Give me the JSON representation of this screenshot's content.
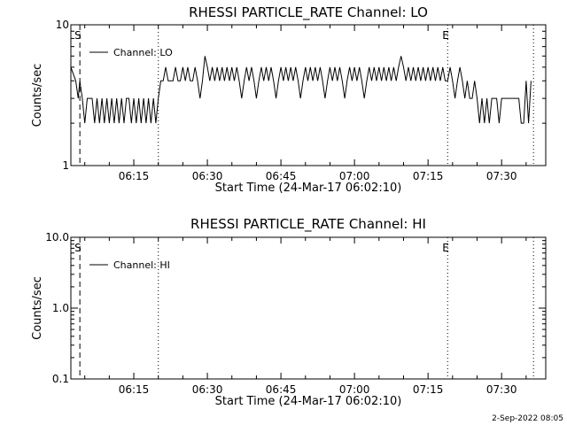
{
  "footer_text": "2-Sep-2022 08:05",
  "chart_data": [
    {
      "type": "line",
      "title": "RHESSI PARTICLE_RATE Channel: LO",
      "xlabel": "Start Time (24-Mar-17 06:02:10)",
      "ylabel": "Counts/sec",
      "y_scale": "log",
      "xlim": [
        "06:02:10",
        "07:39:00"
      ],
      "ylim": [
        1,
        10
      ],
      "x_ticks": [
        "06:15",
        "06:30",
        "06:45",
        "07:00",
        "07:15",
        "07:30"
      ],
      "y_ticks": [
        {
          "value": 1,
          "label": "1"
        },
        {
          "value": 10,
          "label": "10"
        }
      ],
      "legend": {
        "placement": "top-left",
        "entries": [
          "Channel: LO"
        ]
      },
      "markers": [
        {
          "time": "06:04:00",
          "label": "S",
          "style": "dashed"
        },
        {
          "time": "06:20:00",
          "label": "",
          "style": "dotted"
        },
        {
          "time": "07:19:00",
          "label": "E",
          "style": "dotted"
        },
        {
          "time": "07:36:30",
          "label": "",
          "style": "dotted"
        }
      ],
      "series": [
        {
          "name": "Channel: LO",
          "color": "#000000",
          "points": [
            [
              "06:02:10",
              5
            ],
            [
              "06:03:10",
              4
            ],
            [
              "06:03:40",
              3
            ],
            [
              "06:04:00",
              4
            ],
            [
              "06:04:30",
              3
            ],
            [
              "06:05:00",
              2
            ],
            [
              "06:05:30",
              3
            ],
            [
              "06:06:00",
              3
            ],
            [
              "06:06:30",
              3
            ],
            [
              "06:07:00",
              2
            ],
            [
              "06:07:30",
              3
            ],
            [
              "06:08:00",
              2
            ],
            [
              "06:08:30",
              3
            ],
            [
              "06:09:00",
              2
            ],
            [
              "06:09:30",
              3
            ],
            [
              "06:10:00",
              2
            ],
            [
              "06:10:30",
              3
            ],
            [
              "06:11:00",
              2
            ],
            [
              "06:11:30",
              3
            ],
            [
              "06:12:00",
              2
            ],
            [
              "06:12:30",
              3
            ],
            [
              "06:13:00",
              2
            ],
            [
              "06:13:30",
              3
            ],
            [
              "06:14:00",
              3
            ],
            [
              "06:14:30",
              2
            ],
            [
              "06:15:00",
              3
            ],
            [
              "06:15:30",
              2
            ],
            [
              "06:16:00",
              3
            ],
            [
              "06:16:30",
              2
            ],
            [
              "06:17:00",
              3
            ],
            [
              "06:17:30",
              2
            ],
            [
              "06:18:00",
              3
            ],
            [
              "06:18:30",
              2
            ],
            [
              "06:19:00",
              3
            ],
            [
              "06:19:30",
              2
            ],
            [
              "06:20:00",
              3
            ],
            [
              "06:20:30",
              4
            ],
            [
              "06:21:00",
              4
            ],
            [
              "06:21:30",
              5
            ],
            [
              "06:22:00",
              4
            ],
            [
              "06:22:30",
              4
            ],
            [
              "06:23:00",
              4
            ],
            [
              "06:23:30",
              5
            ],
            [
              "06:24:00",
              4
            ],
            [
              "06:24:30",
              4
            ],
            [
              "06:25:00",
              5
            ],
            [
              "06:25:30",
              4
            ],
            [
              "06:26:00",
              5
            ],
            [
              "06:26:30",
              4
            ],
            [
              "06:27:00",
              4
            ],
            [
              "06:27:30",
              5
            ],
            [
              "06:28:00",
              4
            ],
            [
              "06:28:30",
              3
            ],
            [
              "06:29:00",
              4
            ],
            [
              "06:29:30",
              6
            ],
            [
              "06:30:00",
              5
            ],
            [
              "06:30:30",
              4
            ],
            [
              "06:31:00",
              5
            ],
            [
              "06:31:30",
              4
            ],
            [
              "06:32:00",
              5
            ],
            [
              "06:32:30",
              4
            ],
            [
              "06:33:00",
              5
            ],
            [
              "06:33:30",
              4
            ],
            [
              "06:34:00",
              5
            ],
            [
              "06:34:30",
              4
            ],
            [
              "06:35:00",
              5
            ],
            [
              "06:35:30",
              4
            ],
            [
              "06:36:00",
              5
            ],
            [
              "06:36:30",
              4
            ],
            [
              "06:37:00",
              3
            ],
            [
              "06:37:30",
              4
            ],
            [
              "06:38:00",
              5
            ],
            [
              "06:38:30",
              4
            ],
            [
              "06:39:00",
              5
            ],
            [
              "06:39:30",
              4
            ],
            [
              "06:40:00",
              3
            ],
            [
              "06:40:30",
              4
            ],
            [
              "06:41:00",
              5
            ],
            [
              "06:41:30",
              4
            ],
            [
              "06:42:00",
              5
            ],
            [
              "06:42:30",
              4
            ],
            [
              "06:43:00",
              5
            ],
            [
              "06:43:30",
              4
            ],
            [
              "06:44:00",
              3
            ],
            [
              "06:44:30",
              4
            ],
            [
              "06:45:00",
              5
            ],
            [
              "06:45:30",
              4
            ],
            [
              "06:46:00",
              5
            ],
            [
              "06:46:30",
              4
            ],
            [
              "06:47:00",
              5
            ],
            [
              "06:47:30",
              4
            ],
            [
              "06:48:00",
              5
            ],
            [
              "06:48:30",
              4
            ],
            [
              "06:49:00",
              3
            ],
            [
              "06:49:30",
              4
            ],
            [
              "06:50:00",
              5
            ],
            [
              "06:50:30",
              4
            ],
            [
              "06:51:00",
              5
            ],
            [
              "06:51:30",
              4
            ],
            [
              "06:52:00",
              5
            ],
            [
              "06:52:30",
              4
            ],
            [
              "06:53:00",
              5
            ],
            [
              "06:53:30",
              4
            ],
            [
              "06:54:00",
              3
            ],
            [
              "06:54:30",
              4
            ],
            [
              "06:55:00",
              5
            ],
            [
              "06:55:30",
              4
            ],
            [
              "06:56:00",
              5
            ],
            [
              "06:56:30",
              4
            ],
            [
              "06:57:00",
              5
            ],
            [
              "06:57:30",
              4
            ],
            [
              "06:58:00",
              3
            ],
            [
              "06:58:30",
              4
            ],
            [
              "06:59:00",
              5
            ],
            [
              "06:59:30",
              4
            ],
            [
              "07:00:00",
              5
            ],
            [
              "07:00:30",
              4
            ],
            [
              "07:01:00",
              5
            ],
            [
              "07:01:30",
              4
            ],
            [
              "07:02:00",
              3
            ],
            [
              "07:02:30",
              4
            ],
            [
              "07:03:00",
              5
            ],
            [
              "07:03:30",
              4
            ],
            [
              "07:04:00",
              5
            ],
            [
              "07:04:30",
              4
            ],
            [
              "07:05:00",
              5
            ],
            [
              "07:05:30",
              4
            ],
            [
              "07:06:00",
              5
            ],
            [
              "07:06:30",
              4
            ],
            [
              "07:07:00",
              5
            ],
            [
              "07:07:30",
              4
            ],
            [
              "07:08:00",
              5
            ],
            [
              "07:08:30",
              4
            ],
            [
              "07:09:00",
              5
            ],
            [
              "07:09:30",
              6
            ],
            [
              "07:10:00",
              5
            ],
            [
              "07:10:30",
              4
            ],
            [
              "07:11:00",
              5
            ],
            [
              "07:11:30",
              4
            ],
            [
              "07:12:00",
              5
            ],
            [
              "07:12:30",
              4
            ],
            [
              "07:13:00",
              5
            ],
            [
              "07:13:30",
              4
            ],
            [
              "07:14:00",
              5
            ],
            [
              "07:14:30",
              4
            ],
            [
              "07:15:00",
              5
            ],
            [
              "07:15:30",
              4
            ],
            [
              "07:16:00",
              5
            ],
            [
              "07:16:30",
              4
            ],
            [
              "07:17:00",
              5
            ],
            [
              "07:17:30",
              4
            ],
            [
              "07:18:00",
              5
            ],
            [
              "07:18:30",
              4
            ],
            [
              "07:19:00",
              4
            ],
            [
              "07:19:30",
              5
            ],
            [
              "07:20:00",
              4
            ],
            [
              "07:20:30",
              3
            ],
            [
              "07:21:00",
              4
            ],
            [
              "07:21:30",
              5
            ],
            [
              "07:22:00",
              4
            ],
            [
              "07:22:30",
              3
            ],
            [
              "07:23:00",
              4
            ],
            [
              "07:23:30",
              3
            ],
            [
              "07:24:00",
              3
            ],
            [
              "07:24:30",
              4
            ],
            [
              "07:25:00",
              3
            ],
            [
              "07:25:30",
              2
            ],
            [
              "07:26:00",
              3
            ],
            [
              "07:26:30",
              2
            ],
            [
              "07:27:00",
              3
            ],
            [
              "07:27:30",
              2
            ],
            [
              "07:28:00",
              3
            ],
            [
              "07:28:30",
              3
            ],
            [
              "07:29:00",
              3
            ],
            [
              "07:29:30",
              2
            ],
            [
              "07:30:00",
              3
            ],
            [
              "07:30:30",
              3
            ],
            [
              "07:31:00",
              3
            ],
            [
              "07:31:30",
              3
            ],
            [
              "07:32:00",
              3
            ],
            [
              "07:32:30",
              3
            ],
            [
              "07:33:00",
              3
            ],
            [
              "07:33:30",
              3
            ],
            [
              "07:34:00",
              2
            ],
            [
              "07:34:30",
              2
            ],
            [
              "07:35:00",
              4
            ],
            [
              "07:35:30",
              2
            ],
            [
              "07:36:00",
              4
            ]
          ]
        }
      ]
    },
    {
      "type": "line",
      "title": "RHESSI PARTICLE_RATE Channel: HI",
      "xlabel": "Start Time (24-Mar-17 06:02:10)",
      "ylabel": "Counts/sec",
      "y_scale": "log",
      "xlim": [
        "06:02:10",
        "07:39:00"
      ],
      "ylim": [
        0.1,
        10
      ],
      "x_ticks": [
        "06:15",
        "06:30",
        "06:45",
        "07:00",
        "07:15",
        "07:30"
      ],
      "y_ticks": [
        {
          "value": 0.1,
          "label": "0.1"
        },
        {
          "value": 1,
          "label": "1.0"
        },
        {
          "value": 10,
          "label": "10.0"
        }
      ],
      "legend": {
        "placement": "top-left",
        "entries": [
          "Channel: HI"
        ]
      },
      "markers": [
        {
          "time": "06:04:00",
          "label": "S",
          "style": "dashed"
        },
        {
          "time": "06:20:00",
          "label": "",
          "style": "dotted"
        },
        {
          "time": "07:19:00",
          "label": "E",
          "style": "dotted"
        },
        {
          "time": "07:36:30",
          "label": "",
          "style": "dotted"
        }
      ],
      "series": [
        {
          "name": "Channel: HI",
          "color": "#000000",
          "points": []
        }
      ]
    }
  ]
}
